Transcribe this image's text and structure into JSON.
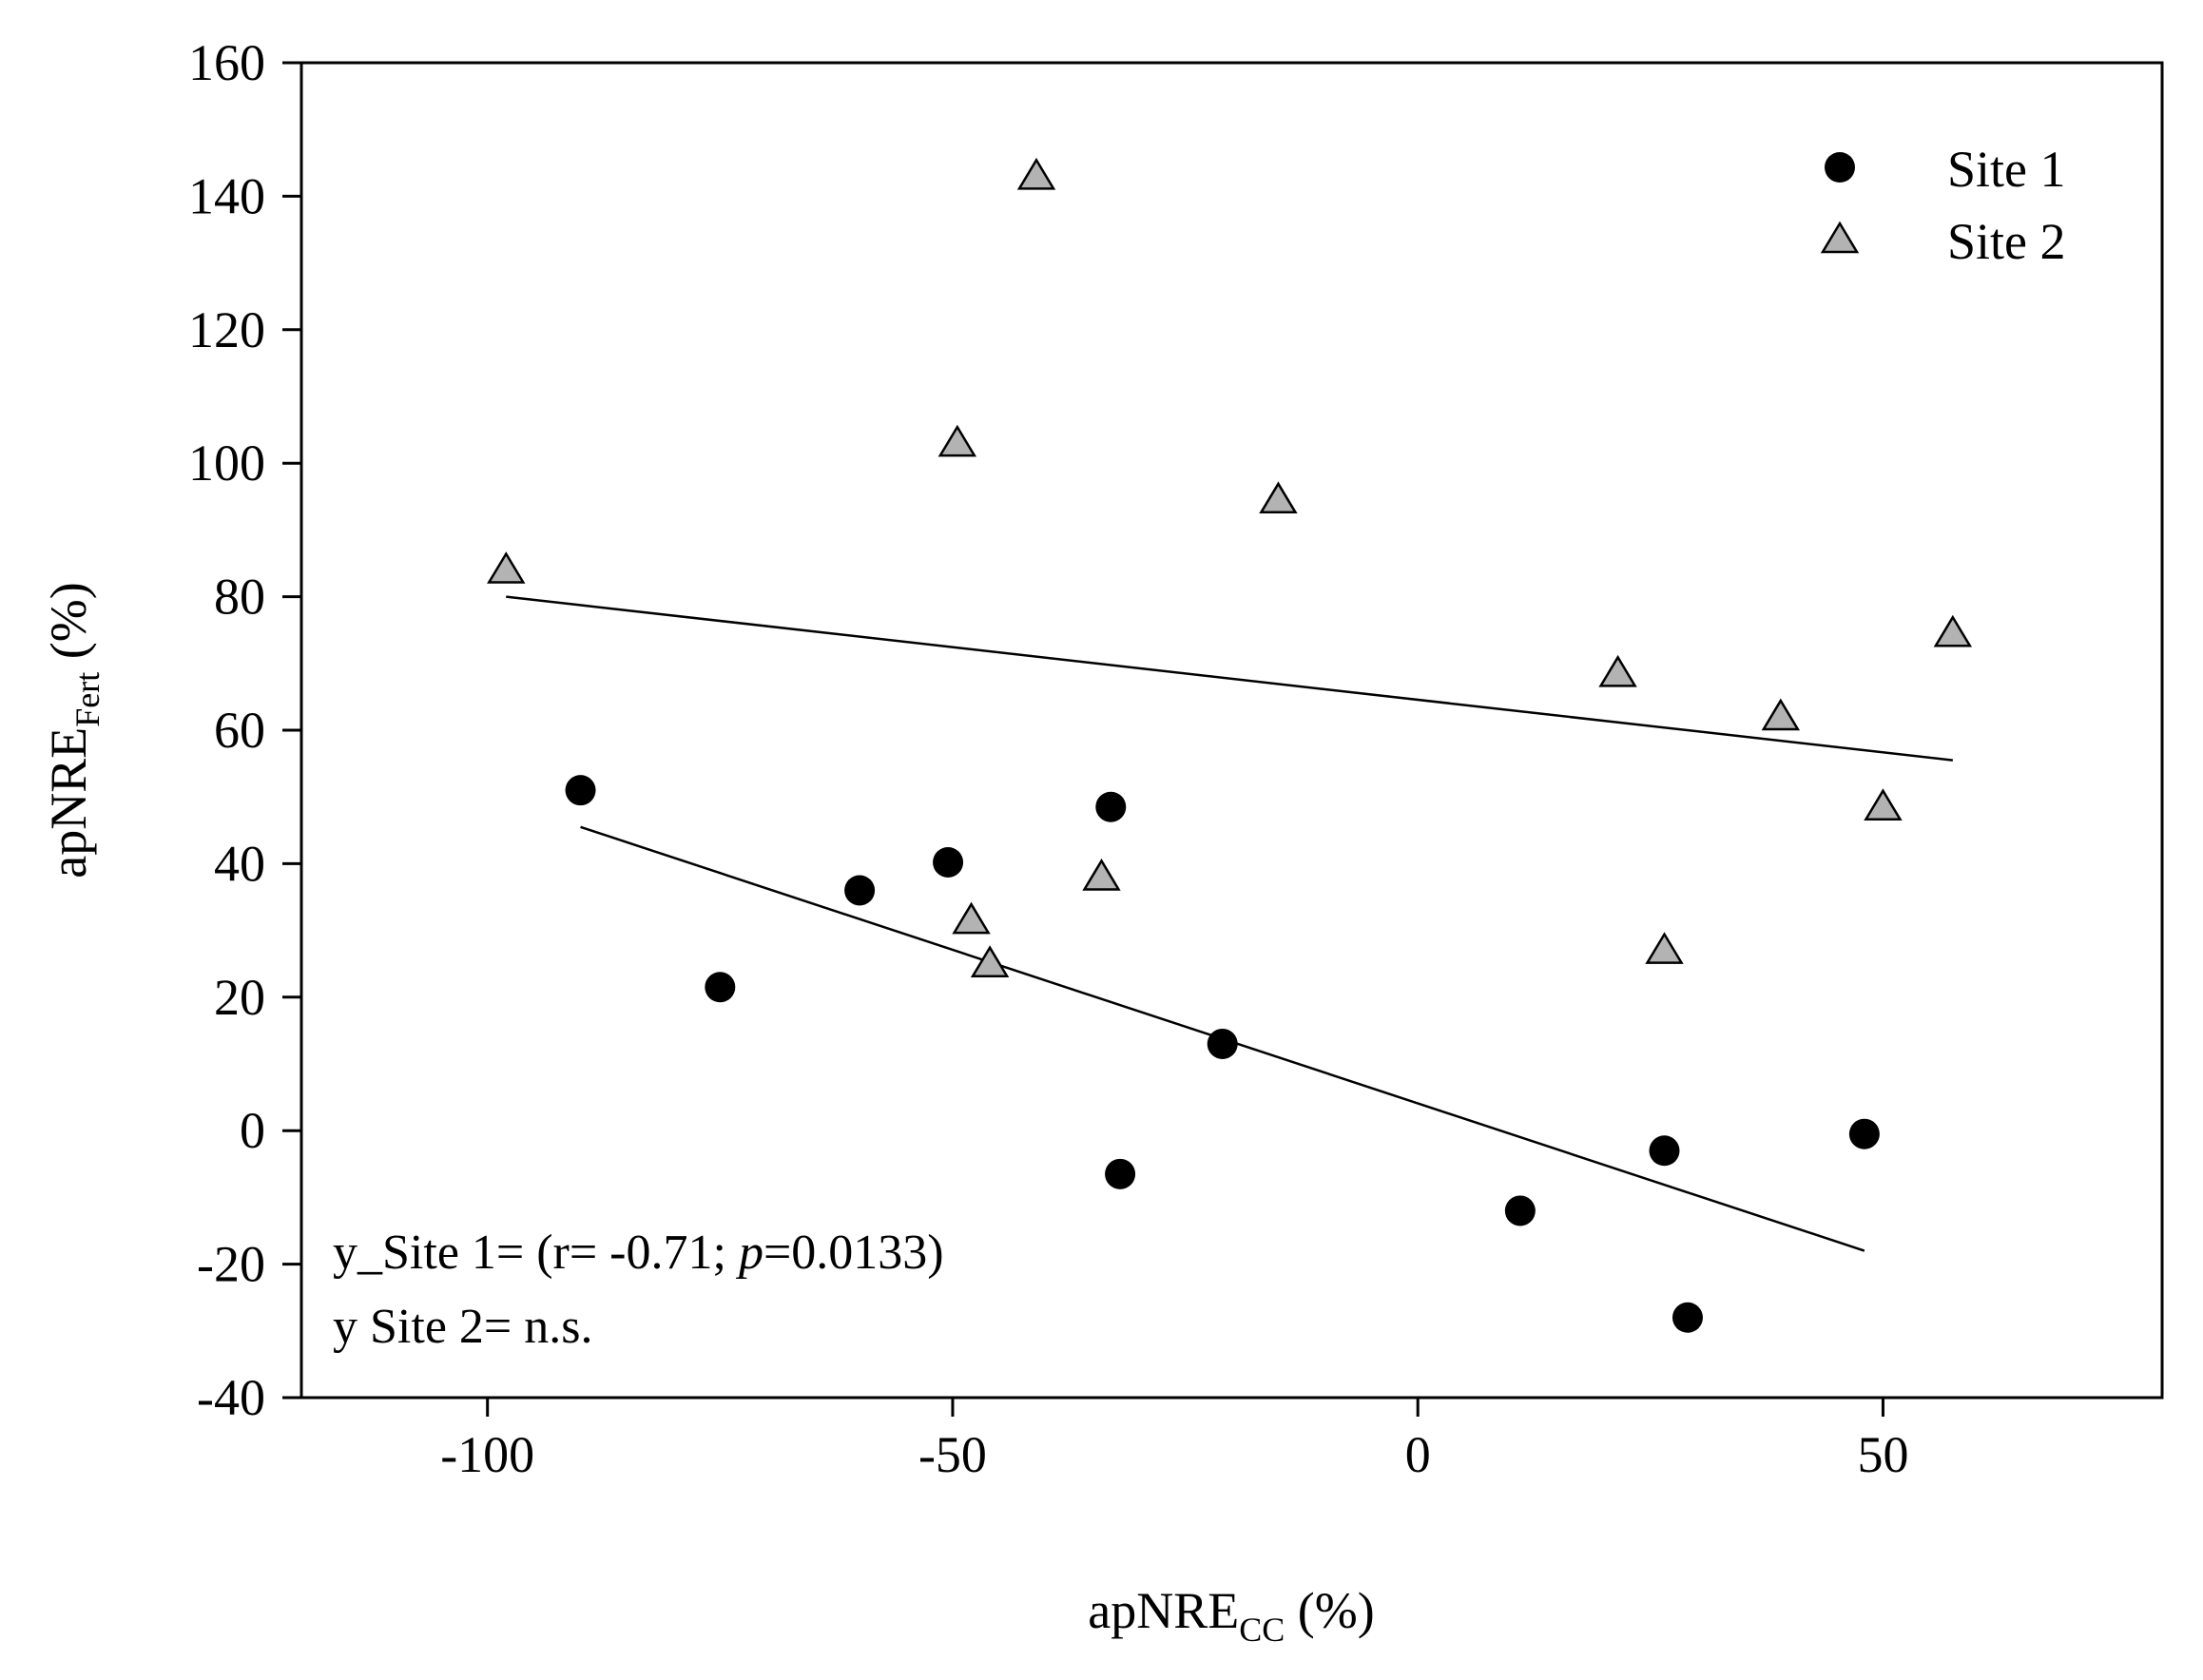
{
  "chart_data": {
    "type": "scatter",
    "title": "",
    "xlabel": {
      "main": "apNRE",
      "sub": "CC",
      "suffix": " (%)"
    },
    "ylabel": {
      "main": "apNRE",
      "sub": "Fert",
      "suffix": " (%)"
    },
    "xlim": [
      -120,
      80
    ],
    "ylim": [
      -40,
      160
    ],
    "xticks": [
      -100,
      -50,
      0,
      50
    ],
    "yticks": [
      -40,
      -20,
      0,
      20,
      40,
      60,
      80,
      100,
      120,
      140,
      160
    ],
    "grid": false,
    "legend_position": "top-right",
    "series": [
      {
        "name": "Site 1",
        "marker": "circle",
        "color": "#000000",
        "points": [
          [
            -90,
            51
          ],
          [
            -75,
            21.5
          ],
          [
            -60,
            36
          ],
          [
            -50.5,
            40.2
          ],
          [
            -33,
            48.5
          ],
          [
            -32,
            -6.5
          ],
          [
            -21,
            13
          ],
          [
            11,
            -12
          ],
          [
            26.5,
            -3
          ],
          [
            29,
            -28
          ],
          [
            48,
            -0.5
          ]
        ],
        "fit": [
          [
            -90,
            45.5
          ],
          [
            48,
            -18
          ]
        ]
      },
      {
        "name": "Site 2",
        "marker": "triangle",
        "color": "#b3b3b3",
        "points": [
          [
            -98,
            84
          ],
          [
            -49.5,
            103
          ],
          [
            -41,
            143
          ],
          [
            -48,
            31.5
          ],
          [
            -46,
            25
          ],
          [
            -34,
            38
          ],
          [
            -15,
            94.5
          ],
          [
            21.5,
            68.5
          ],
          [
            26.5,
            27
          ],
          [
            39,
            62
          ],
          [
            50,
            48.5
          ],
          [
            57.5,
            74.5
          ]
        ],
        "fit": [
          [
            -98,
            80
          ],
          [
            57.5,
            55.5
          ]
        ]
      }
    ],
    "annotations": {
      "line1_prefix": "y_Site 1= (r= -0.71; ",
      "line1_p": "p",
      "line1_suffix": "=0.0133)",
      "line2": "y Site 2= n.s."
    }
  }
}
